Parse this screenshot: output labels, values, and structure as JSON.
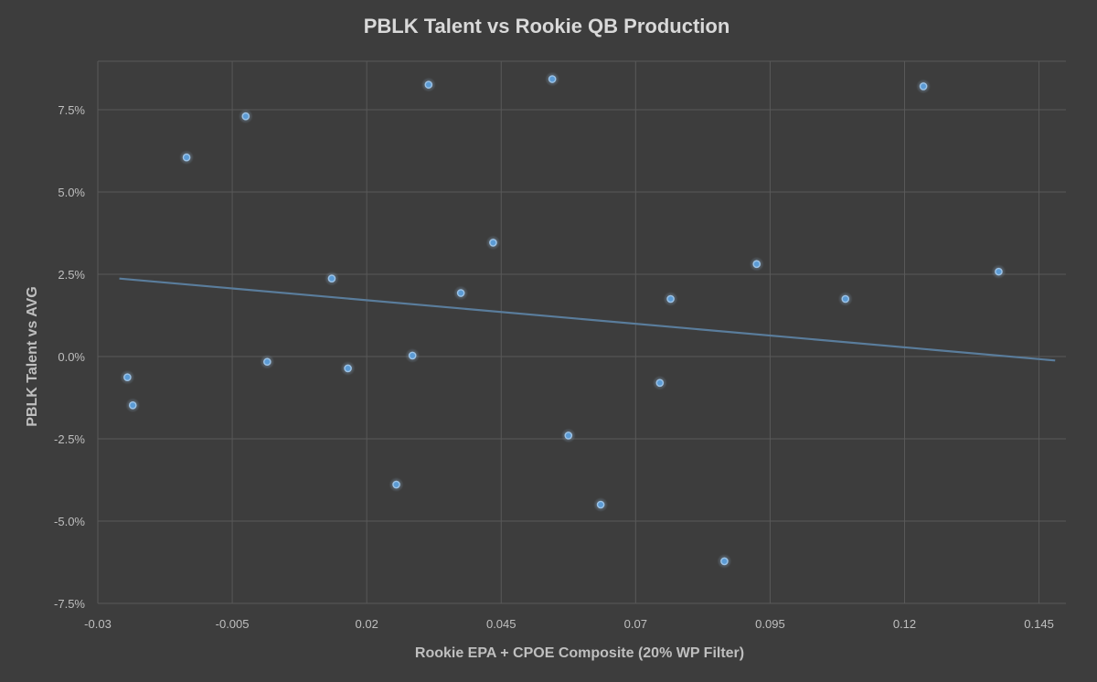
{
  "chart_data": {
    "type": "scatter",
    "title": "PBLK Talent vs Rookie QB Production",
    "xlabel": "Rookie EPA + CPOE Composite (20% WP Filter)",
    "ylabel": "PBLK Talent vs AVG",
    "xlim": [
      -0.03,
      0.15
    ],
    "ylim": [
      -0.075,
      0.09
    ],
    "x_ticks": [
      -0.03,
      -0.005,
      0.02,
      0.045,
      0.07,
      0.095,
      0.12,
      0.145
    ],
    "x_tick_labels": [
      "-0.03",
      "-0.005",
      "0.02",
      "0.045",
      "0.07",
      "0.095",
      "0.12",
      "0.145"
    ],
    "y_ticks": [
      -0.075,
      -0.05,
      -0.025,
      0.0,
      0.025,
      0.05,
      0.075
    ],
    "y_tick_labels": [
      "-7.5%",
      "-5.0%",
      "-2.5%",
      "0.0%",
      "2.5%",
      "5.0%",
      "7.5%"
    ],
    "grid": true,
    "legend": false,
    "colors": {
      "background": "#3d3d3d",
      "grid": "#595959",
      "marker": "#5b9bd5",
      "marker_glow": "#9dc3e6",
      "trendline": "#5a7d9c",
      "text": "#bfbfbf",
      "title": "#d9d9d9"
    },
    "series": [
      {
        "points": [
          [
            -0.0245,
            -0.0063
          ],
          [
            -0.0235,
            -0.0148
          ],
          [
            -0.0135,
            0.0605
          ],
          [
            -0.0025,
            0.073
          ],
          [
            0.0015,
            -0.0016
          ],
          [
            0.0135,
            0.0237
          ],
          [
            0.0165,
            -0.0036
          ],
          [
            0.0255,
            -0.0389
          ],
          [
            0.0285,
            0.0003
          ],
          [
            0.0315,
            0.0826
          ],
          [
            0.0375,
            0.0193
          ],
          [
            0.0435,
            0.0346
          ],
          [
            0.0545,
            0.0843
          ],
          [
            0.0575,
            -0.024
          ],
          [
            0.0635,
            -0.045
          ],
          [
            0.0745,
            -0.008
          ],
          [
            0.0765,
            0.0175
          ],
          [
            0.0865,
            -0.0622
          ],
          [
            0.0925,
            0.0281
          ],
          [
            0.109,
            0.0175
          ],
          [
            0.1235,
            0.0821
          ],
          [
            0.1375,
            0.0258
          ]
        ]
      }
    ],
    "trendline": {
      "type": "linear",
      "x": [
        -0.026,
        0.148
      ],
      "y": [
        0.0237,
        -0.0012
      ]
    }
  }
}
